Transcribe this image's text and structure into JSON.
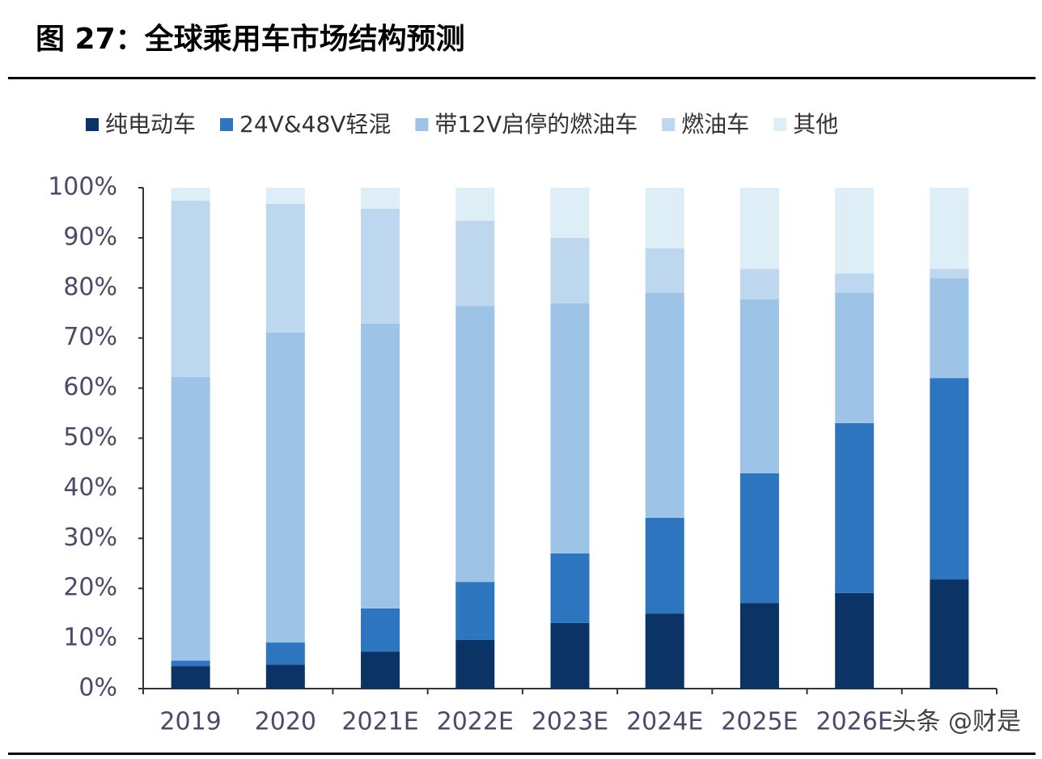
{
  "chart_data": {
    "type": "stacked_bar",
    "title": "图 27：全球乘用车市场结构预测",
    "categories": [
      "2019",
      "2020",
      "2021E",
      "2022E",
      "2023E",
      "2024E",
      "2025E",
      "2026E",
      null
    ],
    "series": [
      {
        "name": "纯电动车",
        "color": "#0b3366",
        "values": [
          4.5,
          4.8,
          7.4,
          9.7,
          13.1,
          15.0,
          17.1,
          19.1,
          21.8
        ]
      },
      {
        "name": "24V&48V轻混",
        "color": "#2e75c0",
        "values": [
          1.1,
          4.4,
          8.6,
          11.6,
          13.9,
          19.1,
          25.9,
          33.9,
          40.2
        ]
      },
      {
        "name": "带12V启停的燃油车",
        "color": "#9dc3e6",
        "values": [
          56.6,
          61.9,
          56.9,
          55.1,
          49.9,
          44.9,
          34.7,
          26.0,
          19.9
        ]
      },
      {
        "name": "燃油车",
        "color": "#bdd7ee",
        "values": [
          35.2,
          25.7,
          22.9,
          17.0,
          13.1,
          8.9,
          6.1,
          3.9,
          1.9
        ]
      },
      {
        "name": "其他",
        "color": "#deeef7",
        "values": [
          2.6,
          3.2,
          4.2,
          6.6,
          10.0,
          12.1,
          16.2,
          17.1,
          16.2
        ]
      }
    ],
    "ylim": [
      0,
      100
    ],
    "yticks": [
      {
        "value": 0,
        "label": "0%"
      },
      {
        "value": 10,
        "label": "10%"
      },
      {
        "value": 20,
        "label": "20%"
      },
      {
        "value": 30,
        "label": "30%"
      },
      {
        "value": 40,
        "label": "40%"
      },
      {
        "value": 50,
        "label": "50%"
      },
      {
        "value": 60,
        "label": "60%"
      },
      {
        "value": 70,
        "label": "70%"
      },
      {
        "value": 80,
        "label": "80%"
      },
      {
        "value": 90,
        "label": "90%"
      },
      {
        "value": 100,
        "label": "100%"
      }
    ],
    "legend": "top",
    "watermark": "头条 @财是"
  }
}
